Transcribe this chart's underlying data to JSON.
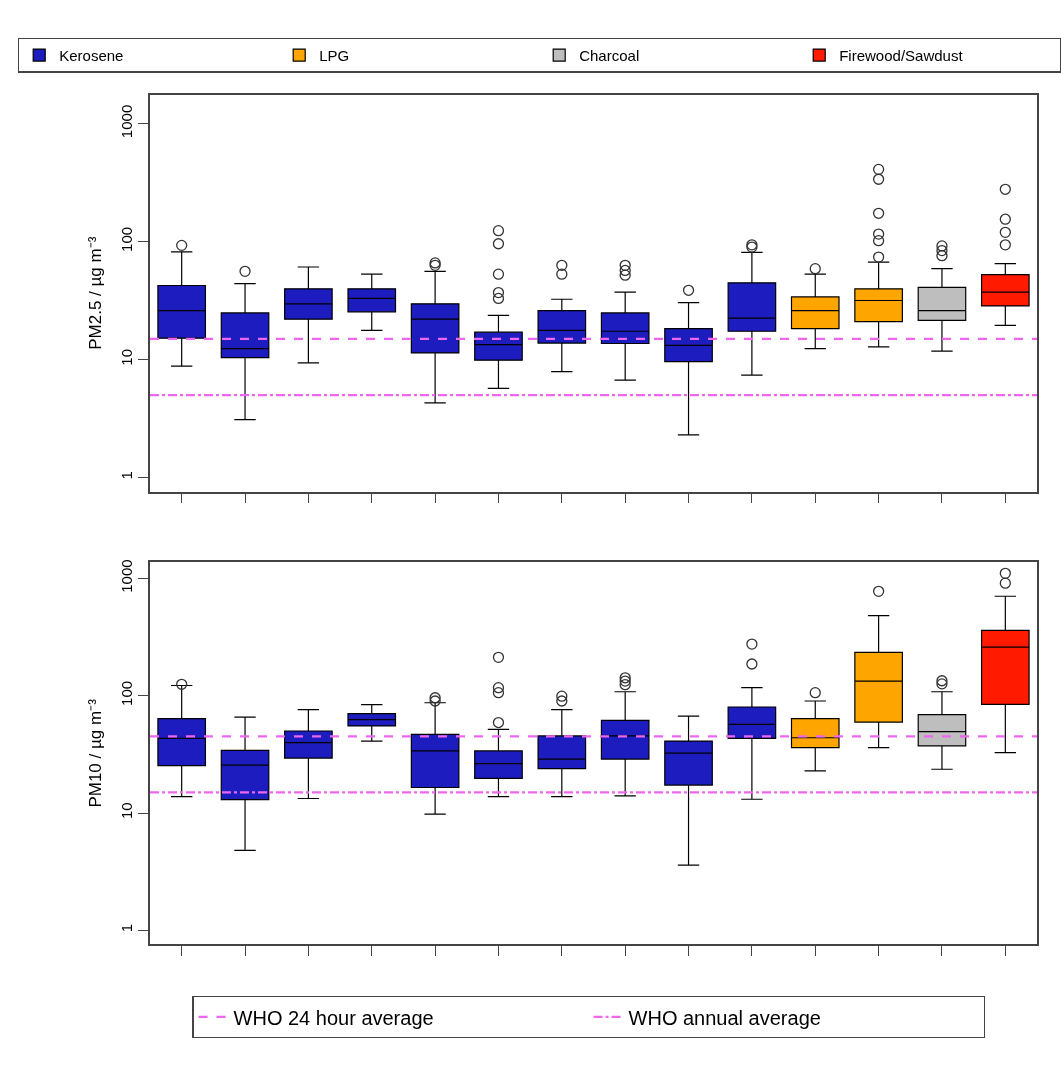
{
  "chart_data": [
    {
      "type": "box",
      "ylabel": "PM2.5 / µg m⁻³",
      "log": true,
      "ylim": [
        0.76,
        1760
      ],
      "yticks": [
        1,
        10,
        100,
        1000
      ],
      "legend": "top",
      "tick_labels": "y",
      "marker": "circle",
      "categories": [
        null,
        null,
        null,
        null,
        null,
        null,
        null,
        null,
        null,
        null,
        null,
        null,
        null,
        null
      ],
      "series": [
        {
          "name": "Kerosene",
          "color": "#1c1cbf",
          "boxes": [
            {
              "low": 8.8,
              "q1": 15.2,
              "median": 26,
              "q3": 42.5,
              "high": 82,
              "outliers": [
                93
              ]
            },
            {
              "low": 3.1,
              "q1": 10.4,
              "median": 12.4,
              "q3": 24.9,
              "high": 44,
              "outliers": [
                56
              ]
            },
            {
              "low": 9.4,
              "q1": 22,
              "median": 29.7,
              "q3": 39.8,
              "high": 61
            },
            {
              "low": 17.7,
              "q1": 25.4,
              "median": 33,
              "q3": 39.8,
              "high": 53
            },
            {
              "low": 4.3,
              "q1": 11.4,
              "median": 22,
              "q3": 29.7,
              "high": 56,
              "outliers": [
                63,
                66
              ]
            },
            {
              "low": 5.7,
              "q1": 9.9,
              "median": 13.4,
              "q3": 17.1,
              "high": 23.7,
              "outliers": [
                33,
                37,
                53,
                96,
                124
              ]
            },
            {
              "low": 7.9,
              "q1": 13.8,
              "median": 17.7,
              "q3": 26,
              "high": 32.5,
              "outliers": [
                53,
                63
              ]
            },
            {
              "low": 6.7,
              "q1": 13.7,
              "median": 17.4,
              "q3": 24.9,
              "high": 37.3,
              "outliers": [
                52,
                57,
                63
              ]
            },
            {
              "low": 2.3,
              "q1": 9.6,
              "median": 13.2,
              "q3": 18.3,
              "high": 30.4,
              "outliers": [
                38.7
              ]
            },
            {
              "low": 7.4,
              "q1": 17.4,
              "median": 22.5,
              "q3": 44.8,
              "high": 81,
              "outliers": [
                90,
                94
              ]
            },
            null,
            null,
            null,
            null
          ]
        },
        {
          "name": "LPG",
          "color": "#ffa500",
          "boxes": [
            null,
            null,
            null,
            null,
            null,
            null,
            null,
            null,
            null,
            null,
            {
              "low": 12.4,
              "q1": 18.3,
              "median": 26,
              "q3": 34,
              "high": 53,
              "outliers": [
                59
              ]
            },
            {
              "low": 12.8,
              "q1": 21,
              "median": 31.7,
              "q3": 39.8,
              "high": 67,
              "outliers": [
                74,
                102,
                116,
                174,
                338,
                410
              ]
            },
            null,
            null
          ]
        },
        {
          "name": "Charcoal",
          "color": "#bebebe",
          "boxes": [
            null,
            null,
            null,
            null,
            null,
            null,
            null,
            null,
            null,
            null,
            null,
            null,
            {
              "low": 11.8,
              "q1": 21.5,
              "median": 26,
              "q3": 41,
              "high": 59,
              "outliers": [
                76,
                84,
                92
              ]
            },
            null
          ]
        },
        {
          "name": "Firewood/Sawdust",
          "color": "#ff1a00",
          "boxes": [
            null,
            null,
            null,
            null,
            null,
            null,
            null,
            null,
            null,
            null,
            null,
            null,
            null,
            {
              "low": 19.5,
              "q1": 28.5,
              "median": 37.3,
              "q3": 52.5,
              "high": 65,
              "outliers": [
                94,
                120,
                155,
                278
              ]
            }
          ]
        }
      ],
      "ref_lines": [
        {
          "axis": "y",
          "value": 15,
          "color": "#ee66ee",
          "line_style": "dashed"
        },
        {
          "axis": "y",
          "value": 5,
          "color": "#ee66ee",
          "line_style": "dashdot"
        }
      ]
    },
    {
      "type": "box",
      "ylabel": "PM10 / µg m⁻³",
      "log": true,
      "ylim": [
        0.76,
        1365
      ],
      "yticks": [
        1,
        10,
        100,
        1000
      ],
      "legend": "bottom",
      "tick_labels": "y",
      "marker": "circle",
      "categories": [
        null,
        null,
        null,
        null,
        null,
        null,
        null,
        null,
        null,
        null,
        null,
        null,
        null,
        null
      ],
      "series": [
        {
          "color": "#1c1cbf",
          "boxes": [
            {
              "low": 13.8,
              "q1": 25.3,
              "median": 43.3,
              "q3": 63.8,
              "high": 122,
              "outliers": [
                125
              ]
            },
            {
              "low": 4.8,
              "q1": 13,
              "median": 25.6,
              "q3": 34.2,
              "high": 65.6
            },
            {
              "low": 13.3,
              "q1": 29.4,
              "median": 39.8,
              "q3": 50,
              "high": 76
            },
            {
              "low": 41,
              "q1": 55.2,
              "median": 62.5,
              "q3": 70.3,
              "high": 84
            },
            {
              "low": 9.8,
              "q1": 16.5,
              "median": 33.8,
              "q3": 46.8,
              "high": 87,
              "outliers": [
                90,
                96
              ]
            },
            {
              "low": 13.8,
              "q1": 19.7,
              "median": 26.4,
              "q3": 33.8,
              "high": 51.5,
              "outliers": [
                59,
                106,
                117,
                212
              ]
            },
            {
              "low": 13.8,
              "q1": 23.9,
              "median": 28.8,
              "q3": 45.4,
              "high": 76,
              "outliers": [
                90,
                99
              ]
            },
            {
              "low": 14,
              "q1": 28.8,
              "median": 45.4,
              "q3": 61.6,
              "high": 108,
              "outliers": [
                124,
                133,
                142
              ]
            },
            {
              "low": 3.6,
              "q1": 17.3,
              "median": 32.4,
              "q3": 41,
              "high": 67
            },
            {
              "low": 13.1,
              "q1": 43.3,
              "median": 57,
              "q3": 80,
              "high": 117,
              "outliers": [
                186,
                275
              ]
            },
            null,
            null,
            null,
            null
          ]
        },
        {
          "color": "#ffa500",
          "boxes": [
            null,
            null,
            null,
            null,
            null,
            null,
            null,
            null,
            null,
            null,
            {
              "low": 22.9,
              "q1": 36.1,
              "median": 43.8,
              "q3": 63.8,
              "high": 90,
              "outliers": [
                106
              ]
            },
            {
              "low": 36.1,
              "q1": 59.6,
              "median": 133,
              "q3": 234,
              "high": 480,
              "outliers": [
                774
              ]
            },
            null,
            null
          ]
        },
        {
          "color": "#bebebe",
          "boxes": [
            null,
            null,
            null,
            null,
            null,
            null,
            null,
            null,
            null,
            null,
            null,
            null,
            {
              "low": 23.6,
              "q1": 37.3,
              "median": 49.4,
              "q3": 69,
              "high": 108,
              "outliers": [
                126,
                134
              ]
            },
            null
          ]
        },
        {
          "color": "#ff1a00",
          "boxes": [
            null,
            null,
            null,
            null,
            null,
            null,
            null,
            null,
            null,
            null,
            null,
            null,
            null,
            {
              "low": 32.7,
              "q1": 84.3,
              "median": 259,
              "q3": 360,
              "high": 703,
              "outliers": [
                909,
                1102
              ]
            }
          ]
        }
      ],
      "ref_lines": [
        {
          "axis": "y",
          "value": 45,
          "label": "WHO 24 hour average",
          "color": "#ee66ee",
          "line_style": "dashed"
        },
        {
          "axis": "y",
          "value": 15,
          "label": "WHO annual average",
          "color": "#ee66ee",
          "line_style": "dashdot"
        }
      ]
    }
  ]
}
